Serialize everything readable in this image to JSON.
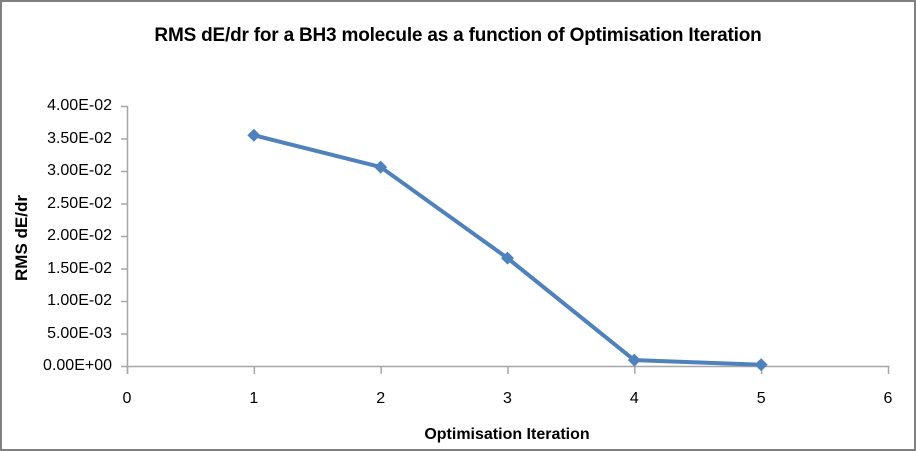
{
  "window": {
    "background_color": "#FFFFFF",
    "border_color": "#808080"
  },
  "chart_data": {
    "type": "line",
    "title": "RMS dE/dr for a BH3 molecule as a function of Optimisation Iteration",
    "xlabel": "Optimisation Iteration",
    "ylabel": "RMS dE/dr",
    "x": [
      1,
      2,
      3,
      4,
      5
    ],
    "y": [
      0.0355,
      0.0306,
      0.0166,
      0.0009,
      0.0002
    ],
    "xlim": [
      0,
      6
    ],
    "ylim": [
      0,
      0.04
    ],
    "x_ticks": [
      0,
      1,
      2,
      3,
      4,
      5,
      6
    ],
    "x_tick_labels": [
      "0",
      "1",
      "2",
      "3",
      "4",
      "5",
      "6"
    ],
    "y_ticks": [
      0,
      0.005,
      0.01,
      0.015,
      0.02,
      0.025,
      0.03,
      0.035,
      0.04
    ],
    "y_tick_labels": [
      "0.00E+00",
      "5.00E-03",
      "1.00E-02",
      "1.50E-02",
      "2.00E-02",
      "2.50E-02",
      "3.00E-02",
      "3.50E-02",
      "4.00E-02"
    ],
    "marker": "diamond",
    "series_color": "#4F81BD",
    "axis_color": "#A6A6A6",
    "text_color": "#000000",
    "grid": false,
    "legend_position": "none"
  }
}
